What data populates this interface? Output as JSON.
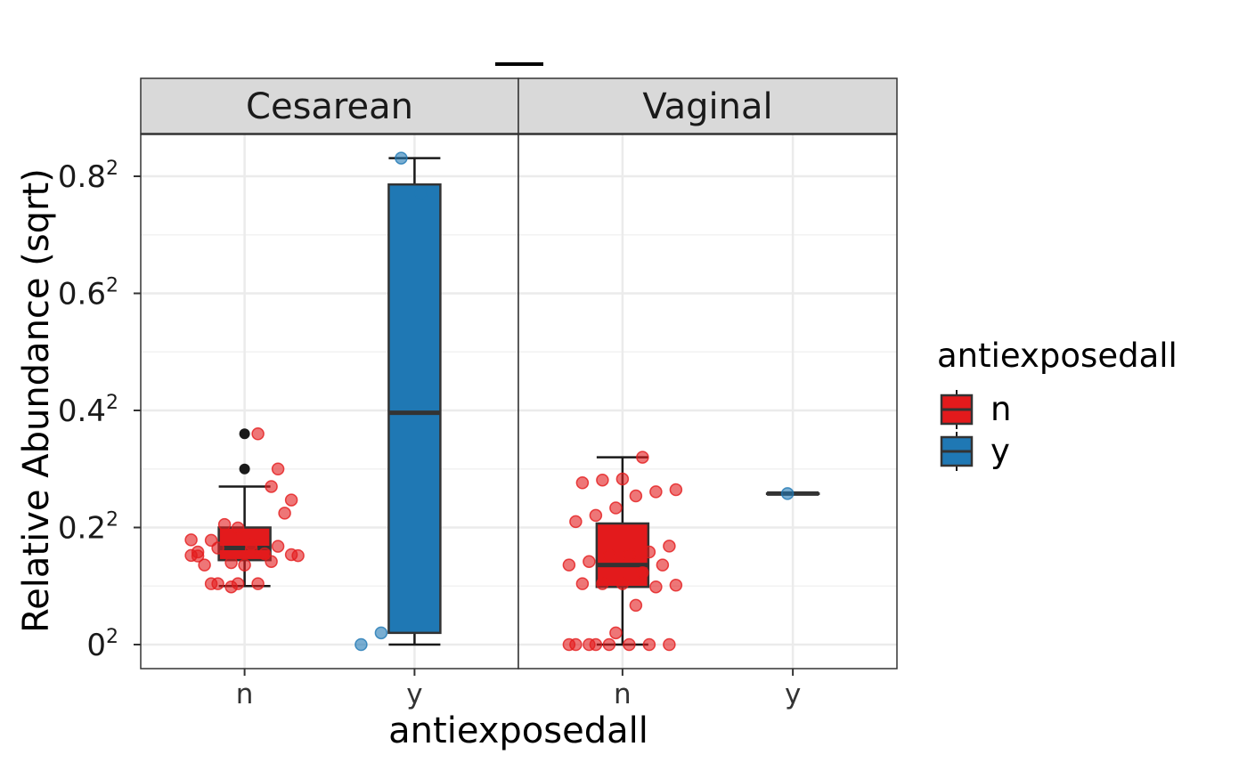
{
  "chart_data": {
    "type": "box",
    "title": "",
    "xlabel": "antiexposedall",
    "ylabel": "Relative Abundance (sqrt)",
    "y_scale": "sqrt",
    "ylim": [
      0,
      0.7569
    ],
    "y_ticks": [
      {
        "value": 0.0,
        "base": "0",
        "exp": "2"
      },
      {
        "value": 0.04,
        "base": "0.2",
        "exp": "2"
      },
      {
        "value": 0.16,
        "base": "0.4",
        "exp": "2"
      },
      {
        "value": 0.36,
        "base": "0.6",
        "exp": "2"
      },
      {
        "value": 0.64,
        "base": "0.8",
        "exp": "2"
      }
    ],
    "grid": true,
    "legend": {
      "title": "antiexposedall",
      "placement": "right",
      "entries": [
        {
          "label": "n",
          "color": "#E31A1C"
        },
        {
          "label": "y",
          "color": "#1F78B4"
        }
      ]
    },
    "panels": [
      {
        "label": "Cesarean",
        "groups": [
          {
            "category": "n",
            "color": "#E31A1C",
            "box": {
              "q1": 0.0208,
              "median": 0.0272,
              "q3": 0.04,
              "whisker_low": 0.01,
              "whisker_high": 0.0729
            },
            "outliers": [
              0.09,
              0.1296
            ],
            "points": [
              0.0232,
              0.0317,
              0.0196,
              0.0264,
              0.0201,
              0.0236,
              0.025,
              0.0272,
              0.0397,
              0.0108,
              0.0282,
              0.0231,
              0.0185,
              0.0421,
              0.0185,
              0.024,
              0.0504,
              0.032,
              0.0108,
              0.0097,
              0.0292,
              0.0729,
              0.061,
              0.0229,
              0.0108,
              0.0108,
              0.1296,
              0.09
            ]
          },
          {
            "category": "y",
            "color": "#1F78B4",
            "box": {
              "q1": 0.0004,
              "median": 0.1568,
              "q3": 0.6178,
              "whisker_low": 0.0,
              "whisker_high": 0.6906
            },
            "outliers": [],
            "points": [
              0.0,
              0.0004,
              0.6906,
              0.5937
            ]
          }
        ]
      },
      {
        "label": "Vaginal",
        "groups": [
          {
            "category": "n",
            "color": "#E31A1C",
            "box": {
              "q1": 0.0097,
              "median": 0.0185,
              "q3": 0.0428,
              "whisker_low": 0.0,
              "whisker_high": 0.1024
            },
            "outliers": [],
            "points": [
              0.0,
              0.0,
              0.0,
              0.0,
              0.0,
              0.0,
              0.0,
              0.0,
              0.0004,
              0.0045,
              0.0097,
              0.0103,
              0.0108,
              0.0108,
              0.0108,
              0.0151,
              0.0185,
              0.0185,
              0.0201,
              0.0232,
              0.0232,
              0.025,
              0.0283,
              0.0441,
              0.0487,
              0.0545,
              0.0645,
              0.0681,
              0.07,
              0.0764,
              0.079,
              0.08,
              0.1024
            ]
          },
          {
            "category": "y",
            "color": "#1F78B4",
            "box": {
              "q1": 0.0666,
              "median": 0.0666,
              "q3": 0.0666,
              "whisker_low": 0.0666,
              "whisker_high": 0.0666
            },
            "outliers": [],
            "points": [
              0.0666
            ]
          }
        ]
      }
    ]
  }
}
